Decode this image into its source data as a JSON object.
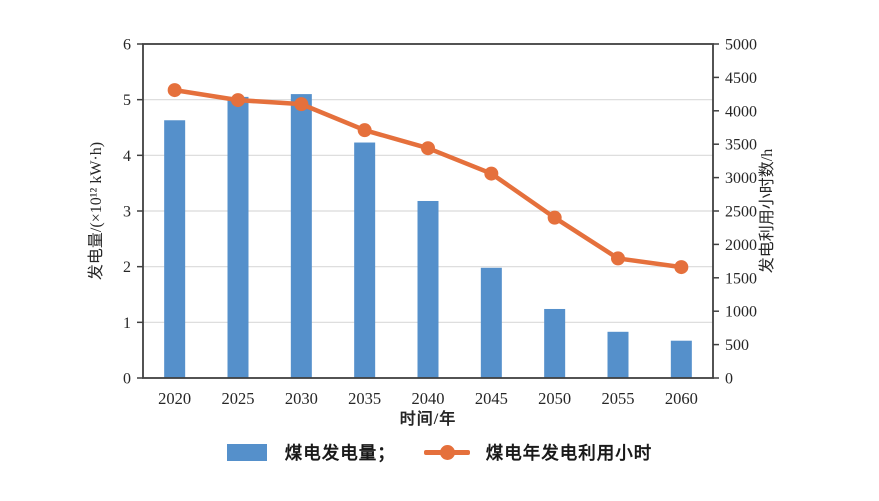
{
  "chart_data": {
    "type": "bar",
    "subtype": "bar+line dual axis",
    "categories": [
      "2020",
      "2025",
      "2030",
      "2035",
      "2040",
      "2045",
      "2050",
      "2055",
      "2060"
    ],
    "series": [
      {
        "name": "煤电发电量",
        "type": "bar",
        "axis": "left",
        "color": "#5590CB",
        "values": [
          4.63,
          5.05,
          5.1,
          4.23,
          3.18,
          1.98,
          1.24,
          0.83,
          0.67
        ]
      },
      {
        "name": "煤电年发电利用小时",
        "type": "line",
        "axis": "right",
        "color": "#E5703C",
        "values": [
          4310,
          4160,
          4100,
          3710,
          3440,
          3060,
          2400,
          1790,
          1660
        ]
      }
    ],
    "left_axis": {
      "label": "发电量/(×10¹² kW·h)",
      "min": 0,
      "max": 6,
      "step": 1
    },
    "right_axis": {
      "label": "发电利用小时数/h",
      "min": 0,
      "max": 5000,
      "step": 500
    },
    "x_axis": {
      "label": "时间/年"
    },
    "grid": "horizontal gridlines at left-axis integers",
    "legend_position": "bottom"
  },
  "legend": {
    "bar_label": "煤电发电量；",
    "line_label": "煤电年发电利用小时"
  },
  "colors": {
    "bar": "#5590CB",
    "line": "#E5703C",
    "axis": "#404040",
    "gridline": "#d9d9d9",
    "text": "#262626"
  }
}
